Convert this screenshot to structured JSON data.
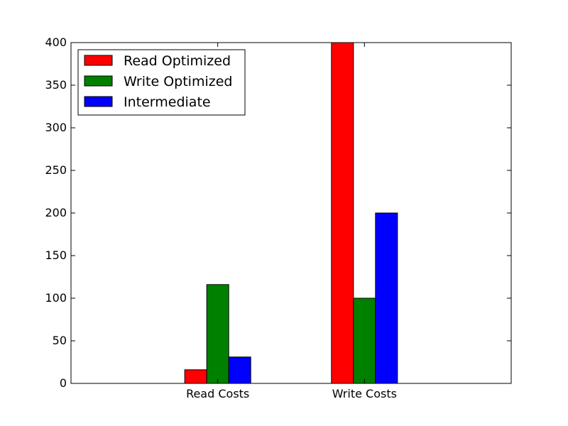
{
  "chart_data": {
    "type": "bar",
    "categories": [
      "Read Costs",
      "Write Costs"
    ],
    "series": [
      {
        "name": "Read Optimized",
        "color": "#ff0000",
        "values": [
          16,
          400
        ]
      },
      {
        "name": "Write Optimized",
        "color": "#008000",
        "values": [
          116,
          100
        ]
      },
      {
        "name": "Intermediate",
        "color": "#0000ff",
        "values": [
          31,
          200
        ]
      }
    ],
    "title": "",
    "xlabel": "",
    "ylabel": "",
    "ylim": [
      0,
      400
    ],
    "yticks": [
      0,
      50,
      100,
      150,
      200,
      250,
      300,
      350,
      400
    ],
    "grid": false,
    "legend_position": "top-left"
  }
}
